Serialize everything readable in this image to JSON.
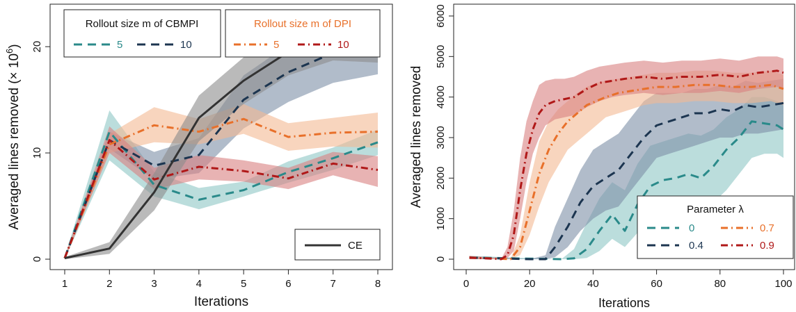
{
  "chart_data": [
    {
      "type": "line",
      "xlabel": "Iterations",
      "ylabel_main": "Averaged lines removed (",
      "ylabel_unit": "× 10",
      "ylabel_exp": "6",
      "ylabel_close": ")",
      "xlim": [
        1,
        8
      ],
      "ylim": [
        0,
        24
      ],
      "xticks": [
        1,
        2,
        3,
        4,
        5,
        6,
        7,
        8
      ],
      "yticks": [
        0,
        10,
        20
      ],
      "legends": [
        {
          "title": "Rollout size m of CBMPI",
          "entries": [
            "5",
            "10"
          ]
        },
        {
          "title": "Rollout size m of DPI",
          "entries": [
            "5",
            "10"
          ]
        },
        {
          "title": "",
          "entries": [
            "CE"
          ]
        }
      ],
      "series": [
        {
          "name": "5",
          "group": "CBMPI",
          "color": "#2a8a8a",
          "fill": "#8ec7c5",
          "dash": "dash",
          "x": [
            1,
            2,
            3,
            4,
            5,
            6,
            7,
            8
          ],
          "y": [
            0.1,
            12.0,
            7.0,
            5.6,
            6.5,
            8.2,
            9.5,
            11.0
          ],
          "lo": [
            0.0,
            9.3,
            5.9,
            4.7,
            5.9,
            7.2,
            8.4,
            9.8
          ],
          "hi": [
            0.2,
            14.0,
            8.2,
            6.7,
            7.3,
            9.2,
            10.5,
            12.2
          ]
        },
        {
          "name": "10",
          "group": "CBMPI",
          "color": "#1c3550",
          "fill": "#7d8fa6",
          "dash": "dash",
          "x": [
            1,
            2,
            3,
            4,
            5,
            6,
            7,
            8
          ],
          "y": [
            0.1,
            11.2,
            8.8,
            9.8,
            15.0,
            17.6,
            19.4,
            20.3
          ],
          "lo": [
            0.0,
            10.4,
            7.5,
            8.1,
            12.3,
            14.8,
            16.6,
            17.4
          ],
          "hi": [
            0.2,
            12.0,
            10.1,
            11.4,
            17.3,
            20.2,
            22.0,
            22.8
          ]
        },
        {
          "name": "5",
          "group": "DPI",
          "color": "#e8702a",
          "fill": "#f4b993",
          "dash": "dashdot",
          "x": [
            1,
            2,
            3,
            4,
            5,
            6,
            7,
            8
          ],
          "y": [
            0.1,
            10.8,
            12.6,
            12.0,
            13.2,
            11.5,
            11.9,
            12.0
          ],
          "lo": [
            0.0,
            10.0,
            11.0,
            10.8,
            11.8,
            10.2,
            10.6,
            10.5
          ],
          "hi": [
            0.2,
            11.8,
            14.3,
            13.2,
            14.6,
            12.8,
            13.3,
            13.8
          ]
        },
        {
          "name": "10",
          "group": "DPI",
          "color": "#b01818",
          "fill": "#d98080",
          "dash": "dashdot",
          "x": [
            1,
            2,
            3,
            4,
            5,
            6,
            7,
            8
          ],
          "y": [
            0.1,
            11.2,
            7.5,
            8.7,
            8.3,
            7.6,
            9.0,
            8.4
          ],
          "lo": [
            0.0,
            10.0,
            6.6,
            7.5,
            7.3,
            6.6,
            7.9,
            6.8
          ],
          "hi": [
            0.2,
            12.5,
            8.6,
            9.8,
            9.3,
            8.6,
            10.1,
            9.7
          ]
        },
        {
          "name": "CE",
          "group": "CE",
          "color": "#333333",
          "fill": "#8c8c8c",
          "dash": "solid",
          "x": [
            1,
            2,
            3,
            4,
            5,
            6,
            7,
            8
          ],
          "y": [
            0.1,
            1.0,
            6.3,
            13.3,
            16.8,
            19.5,
            20.8,
            20.7
          ],
          "lo": [
            0.0,
            0.5,
            4.6,
            11.1,
            14.6,
            17.3,
            18.7,
            18.5
          ],
          "hi": [
            0.2,
            1.6,
            8.1,
            15.4,
            19.0,
            21.7,
            22.8,
            22.8
          ]
        }
      ]
    },
    {
      "type": "line",
      "xlabel": "Iterations",
      "ylabel": "Averaged lines removed",
      "xlim": [
        0,
        100
      ],
      "ylim": [
        0,
        6000
      ],
      "xticks": [
        0,
        20,
        40,
        60,
        80,
        100
      ],
      "yticks": [
        0,
        1000,
        2000,
        3000,
        4000,
        5000,
        6000
      ],
      "legend": {
        "title": "Parameter λ",
        "position": "bottom-right"
      },
      "series": [
        {
          "name": "0",
          "color": "#2a8a8a",
          "fill": "#8ec7c5",
          "dash": "dash",
          "x": [
            1,
            30,
            34,
            38,
            42,
            46,
            50,
            54,
            58,
            62,
            66,
            70,
            74,
            78,
            82,
            86,
            90,
            94,
            98,
            100
          ],
          "y": [
            40,
            0,
            20,
            250,
            700,
            1100,
            700,
            1350,
            1800,
            1950,
            2000,
            2100,
            2000,
            2300,
            2700,
            3000,
            3400,
            3350,
            3300,
            3200
          ],
          "lo": [
            0,
            0,
            0,
            30,
            200,
            500,
            300,
            650,
            900,
            1100,
            1150,
            1200,
            1250,
            1400,
            1700,
            2100,
            2500,
            2600,
            2600,
            2500
          ],
          "hi": [
            80,
            0,
            250,
            900,
            1500,
            1900,
            1700,
            2350,
            2800,
            2900,
            3000,
            3100,
            3050,
            3200,
            3500,
            3700,
            4000,
            4000,
            3900,
            3800
          ]
        },
        {
          "name": "0.4",
          "color": "#1c3550",
          "fill": "#7d8fa6",
          "dash": "dash",
          "x": [
            1,
            20,
            25,
            28,
            32,
            36,
            40,
            44,
            48,
            52,
            56,
            60,
            64,
            68,
            72,
            76,
            80,
            84,
            88,
            92,
            96,
            100
          ],
          "y": [
            40,
            0,
            0,
            300,
            800,
            1400,
            1800,
            2000,
            2200,
            2600,
            3000,
            3300,
            3400,
            3500,
            3600,
            3600,
            3700,
            3650,
            3800,
            3750,
            3800,
            3850
          ],
          "lo": [
            0,
            0,
            0,
            50,
            300,
            700,
            1000,
            1200,
            1300,
            1700,
            2100,
            2500,
            2600,
            2700,
            2800,
            2900,
            3000,
            3000,
            3100,
            3100,
            3150,
            3200
          ],
          "hi": [
            80,
            0,
            100,
            800,
            1500,
            2200,
            2700,
            2900,
            3100,
            3500,
            3900,
            4100,
            4100,
            4100,
            4200,
            4200,
            4300,
            4250,
            4400,
            4350,
            4400,
            4450
          ]
        },
        {
          "name": "0.7",
          "color": "#e8702a",
          "fill": "#f4b993",
          "dash": "dashdot",
          "x": [
            1,
            14,
            17,
            20,
            23,
            26,
            29,
            32,
            35,
            38,
            41,
            44,
            48,
            52,
            56,
            60,
            66,
            72,
            78,
            84,
            90,
            96,
            100
          ],
          "y": [
            40,
            0,
            300,
            1200,
            2100,
            2700,
            3100,
            3400,
            3600,
            3800,
            3900,
            4000,
            4100,
            4150,
            4200,
            4250,
            4250,
            4300,
            4300,
            4250,
            4250,
            4300,
            4200
          ],
          "lo": [
            0,
            0,
            100,
            600,
            1300,
            1900,
            2300,
            2700,
            2900,
            3100,
            3300,
            3500,
            3600,
            3700,
            3800,
            3850,
            3850,
            3900,
            3900,
            3850,
            3850,
            3900,
            3800
          ],
          "hi": [
            80,
            0,
            600,
            1900,
            2900,
            3400,
            3700,
            3900,
            4100,
            4250,
            4350,
            4400,
            4450,
            4500,
            4550,
            4600,
            4600,
            4650,
            4650,
            4600,
            4600,
            4650,
            4550
          ]
        },
        {
          "name": "0.9",
          "color": "#b01818",
          "fill": "#d98080",
          "dash": "dashdot",
          "x": [
            1,
            11,
            13,
            15,
            17,
            19,
            21,
            23,
            25,
            28,
            31,
            34,
            38,
            42,
            46,
            50,
            56,
            62,
            68,
            74,
            80,
            86,
            92,
            98,
            100
          ],
          "y": [
            40,
            0,
            100,
            600,
            1700,
            2600,
            3200,
            3600,
            3800,
            3900,
            3950,
            4000,
            4200,
            4350,
            4400,
            4450,
            4500,
            4450,
            4500,
            4500,
            4550,
            4500,
            4600,
            4650,
            4600
          ],
          "lo": [
            0,
            0,
            30,
            200,
            1000,
            1900,
            2600,
            3000,
            3300,
            3450,
            3500,
            3550,
            3750,
            3900,
            4000,
            4050,
            4100,
            4050,
            4100,
            4100,
            4150,
            4100,
            4200,
            4250,
            4200
          ],
          "hi": [
            80,
            0,
            300,
            1200,
            2500,
            3400,
            3900,
            4300,
            4400,
            4450,
            4450,
            4500,
            4650,
            4750,
            4800,
            4850,
            4900,
            4850,
            4900,
            4900,
            4950,
            4900,
            5000,
            5000,
            4950
          ]
        }
      ]
    }
  ]
}
